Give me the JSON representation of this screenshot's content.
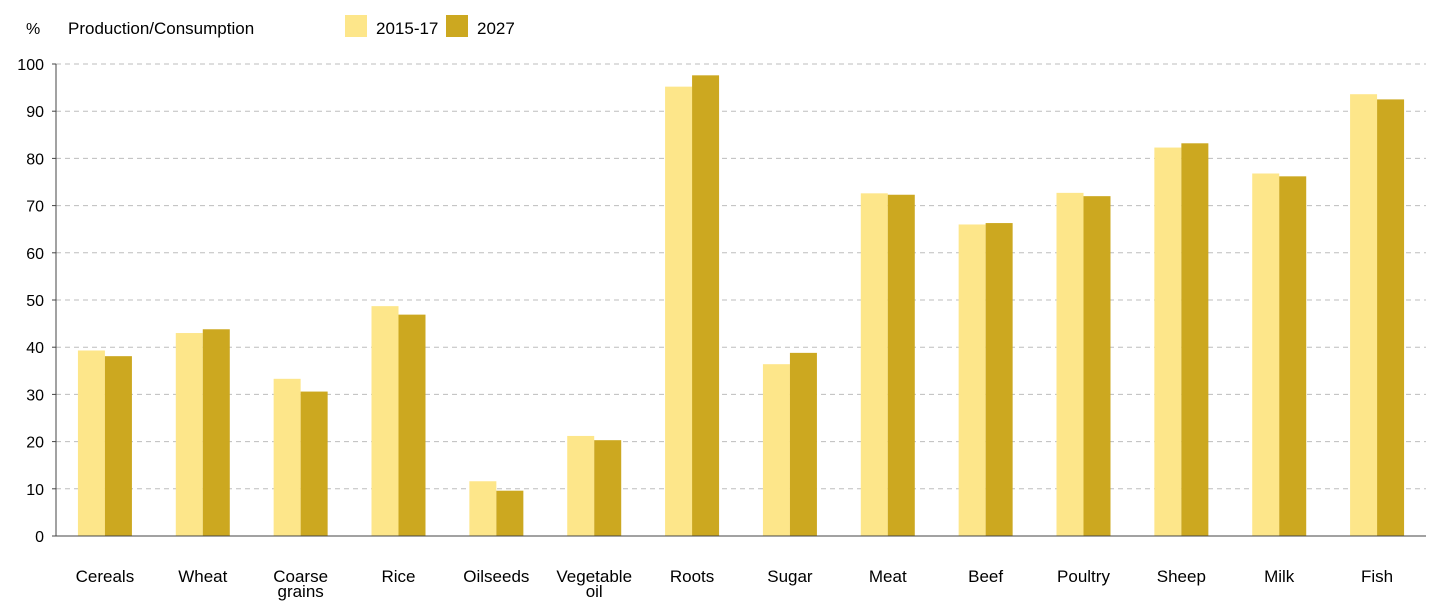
{
  "chart_data": {
    "type": "bar",
    "y_unit": "%",
    "legend_title": "Production/Consumption",
    "legend_position": "top-left",
    "categories": [
      [
        "Cereals"
      ],
      [
        "Wheat"
      ],
      [
        "Coarse",
        "grains"
      ],
      [
        "Rice"
      ],
      [
        "Oilseeds"
      ],
      [
        "Vegetable",
        "oil"
      ],
      [
        "Roots"
      ],
      [
        "Sugar"
      ],
      [
        "Meat"
      ],
      [
        "Beef"
      ],
      [
        "Poultry"
      ],
      [
        "Sheep"
      ],
      [
        "Milk"
      ],
      [
        "Fish"
      ]
    ],
    "series": [
      {
        "name": "2015-17",
        "color": "#fde68a",
        "values": [
          39.3,
          43.0,
          33.3,
          48.7,
          11.6,
          21.2,
          95.2,
          36.4,
          72.6,
          66.0,
          72.7,
          82.3,
          76.8,
          93.6
        ]
      },
      {
        "name": "2027",
        "color": "#cca820",
        "values": [
          38.1,
          43.8,
          30.6,
          46.9,
          9.6,
          20.3,
          97.6,
          38.8,
          72.3,
          66.3,
          72.0,
          83.2,
          76.2,
          92.5
        ]
      }
    ],
    "ylim": [
      0,
      100
    ],
    "yticks": [
      0,
      10,
      20,
      30,
      40,
      50,
      60,
      70,
      80,
      90,
      100
    ],
    "grid": "horizontal-dashed"
  }
}
